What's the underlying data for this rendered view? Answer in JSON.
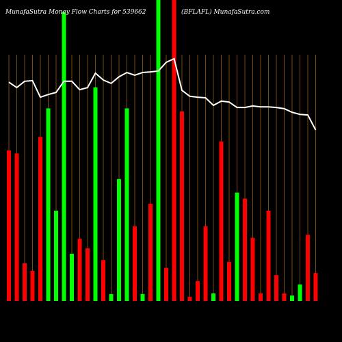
{
  "chart_data": {
    "type": "bar",
    "title": "MunafaSutra  Money Flow  Charts for 539662",
    "subtitle": "(BFLAFL) MunafaSutra.com",
    "values": [
      50,
      49,
      12.5,
      10,
      54.5,
      64,
      30,
      96,
      15.7,
      20.7,
      17.5,
      71,
      13.6,
      2.3,
      40.5,
      64,
      24.8,
      2.3,
      32.3,
      100,
      11,
      100,
      63,
      1.4,
      6.6,
      24.8,
      2.5,
      53,
      13,
      36,
      34,
      21,
      2.5,
      30,
      8.6,
      2.5,
      1.8,
      5.5,
      22,
      9.3
    ],
    "colors": [
      "#ff0000",
      "#ff0000",
      "#ff0000",
      "#ff0000",
      "#ff0000",
      "#00ff00",
      "#00ff00",
      "#00ff00",
      "#00ff00",
      "#ff0000",
      "#ff0000",
      "#00ff00",
      "#ff0000",
      "#00ff00",
      "#00ff00",
      "#00ff00",
      "#ff0000",
      "#00ff00",
      "#ff0000",
      "#00ff00",
      "#ff0000",
      "#ff0000",
      "#ff0000",
      "#ff0000",
      "#ff0000",
      "#ff0000",
      "#00ff00",
      "#ff0000",
      "#ff0000",
      "#00ff00",
      "#ff0000",
      "#ff0000",
      "#ff0000",
      "#ff0000",
      "#ff0000",
      "#ff0000",
      "#00ff00",
      "#00ff00",
      "#ff0000",
      "#ff0000"
    ],
    "line": {
      "color": "#ffffff",
      "values": [
        72.7,
        70.9,
        73,
        73.2,
        67.7,
        68.6,
        69.3,
        73,
        73,
        70.2,
        70.9,
        75.7,
        73.4,
        72.3,
        74.5,
        75.9,
        75,
        75.9,
        76.1,
        76.4,
        79.3,
        80.5,
        70,
        68,
        67.7,
        67.5,
        65,
        66.4,
        66.1,
        64.3,
        64.3,
        64.8,
        64.5,
        64.5,
        64.3,
        63.9,
        62.7,
        62,
        61.8,
        56.8
      ]
    },
    "ylim": [
      0,
      100
    ],
    "grid": true
  }
}
